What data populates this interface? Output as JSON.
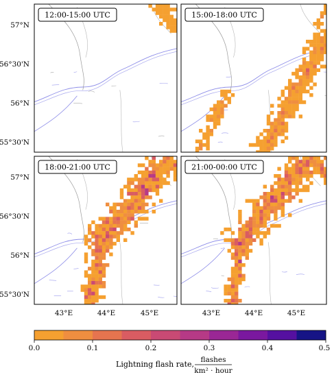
{
  "panels": [
    {
      "label": "12:00-15:00 UTC"
    },
    {
      "label": "15:00-18:00 UTC"
    },
    {
      "label": "18:00-21:00 UTC"
    },
    {
      "label": "21:00-00:00 UTC"
    }
  ],
  "axes": {
    "lat_ticks": [
      {
        "label": "57°N",
        "value": 57.0
      },
      {
        "label": "56°30'N",
        "value": 56.5
      },
      {
        "label": "56°N",
        "value": 56.0
      },
      {
        "label": "55°30'N",
        "value": 55.5
      }
    ],
    "lon_ticks": [
      {
        "label": "43°E",
        "value": 43.0
      },
      {
        "label": "44°E",
        "value": 44.0
      },
      {
        "label": "45°E",
        "value": 45.0
      }
    ],
    "lon_range": [
      42.3,
      45.65
    ],
    "lat_range": [
      55.2,
      57.28
    ]
  },
  "colorbar": {
    "ticks": [
      "0.0",
      "0.1",
      "0.2",
      "0.3",
      "0.4",
      "0.5"
    ],
    "range": [
      0,
      0.5
    ],
    "label": "Lightning flash rate,",
    "units_numerator": "flashes",
    "units_denominator": "km² · hour",
    "colors": [
      "#f5a030",
      "#ef8e40",
      "#e6744f",
      "#d95c62",
      "#c94a74",
      "#b63a86",
      "#9a2795",
      "#7a189f",
      "#5510a0",
      "#161486"
    ]
  }
}
